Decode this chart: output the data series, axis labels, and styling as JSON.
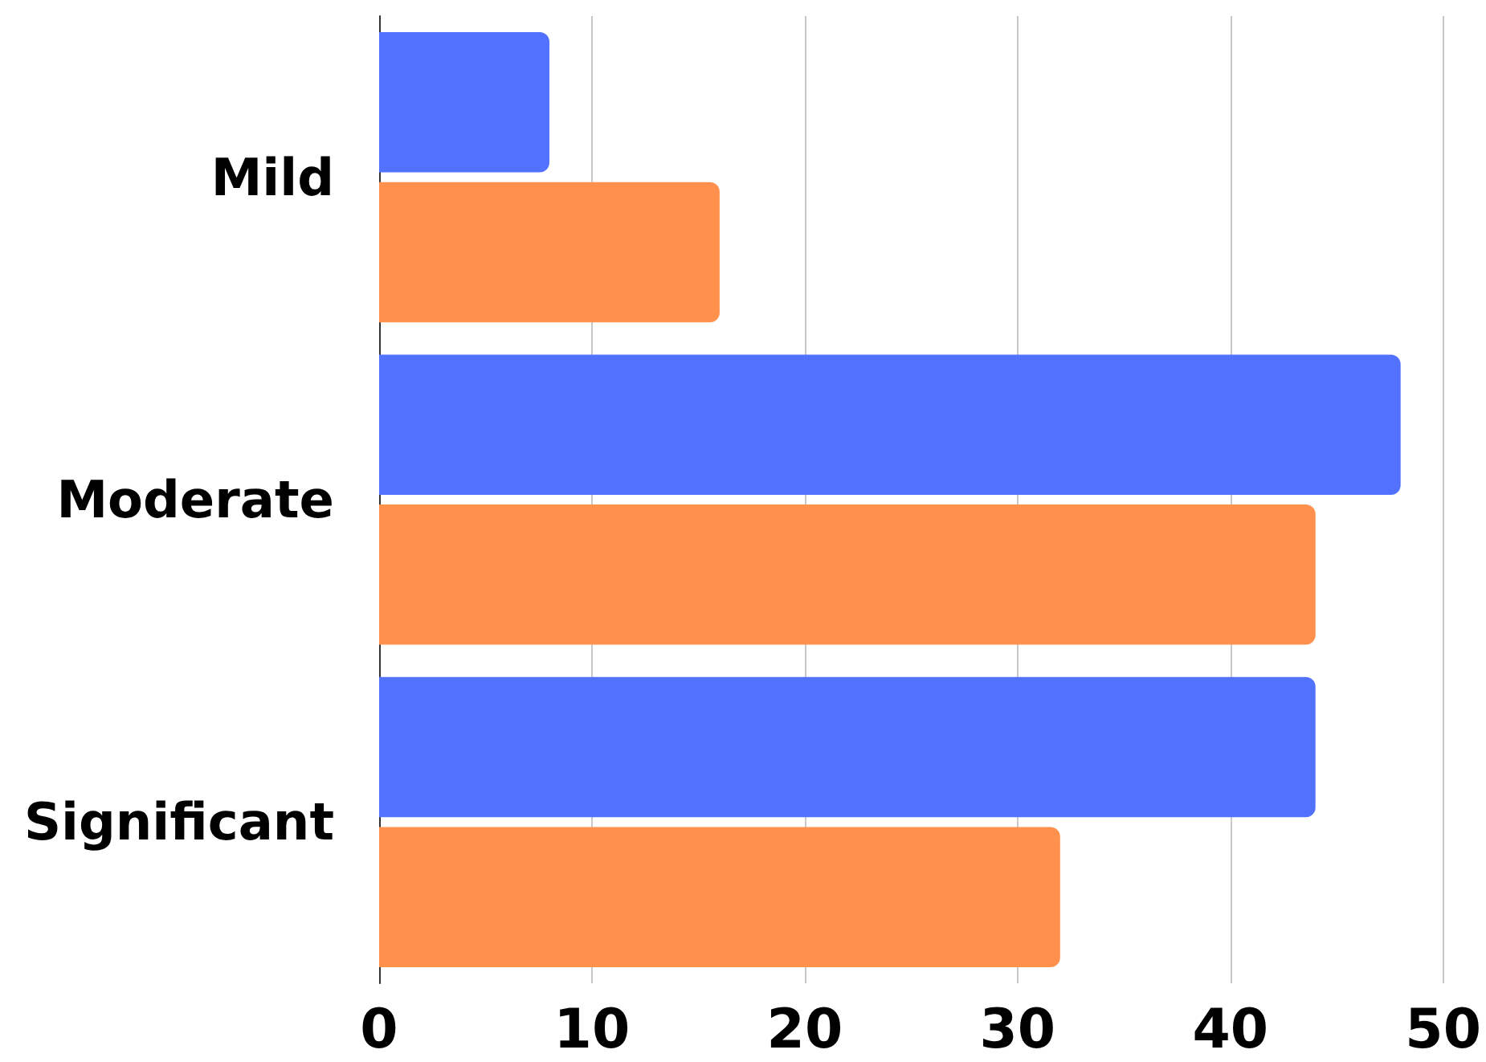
{
  "chart_data": {
    "type": "bar",
    "orientation": "horizontal",
    "categories": [
      "Mild",
      "Moderate",
      "Significant"
    ],
    "series": [
      {
        "color": "#5271ff",
        "values": [
          8,
          48,
          44
        ]
      },
      {
        "color": "#ff914d",
        "values": [
          16,
          44,
          32
        ]
      }
    ],
    "xlim": [
      0,
      50
    ],
    "xticks": [
      0,
      10,
      20,
      30,
      40,
      50
    ],
    "grid": "x"
  }
}
